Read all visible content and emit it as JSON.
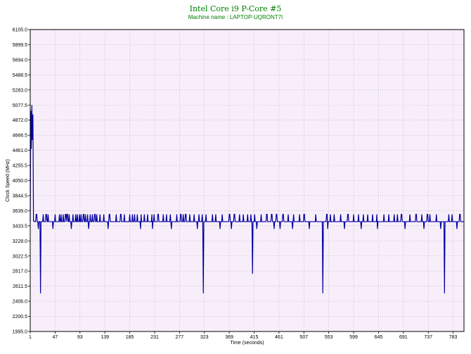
{
  "chart_data": {
    "type": "line",
    "title": "Intel Core i9 P-Core #5",
    "subtitle": "Machine name : LAPTOP-UQRONT7I",
    "xlabel": "Time (seconds)",
    "ylabel": "Clock Speed (MHz)",
    "xlim": [
      1,
      803
    ],
    "ylim": [
      1995.0,
      6105.0
    ],
    "x_ticks": [
      1,
      47,
      93,
      139,
      185,
      231,
      277,
      323,
      369,
      415,
      461,
      507,
      553,
      599,
      645,
      691,
      737,
      783
    ],
    "y_ticks": [
      "1995.0",
      "2200.5",
      "2406.0",
      "2611.5",
      "2817.0",
      "3022.5",
      "3228.0",
      "3433.5",
      "3639.0",
      "3844.5",
      "4050.0",
      "4255.5",
      "4461.0",
      "4666.5",
      "4872.0",
      "5077.5",
      "5283.0",
      "5488.5",
      "5694.0",
      "5899.5",
      "6105.0"
    ],
    "grid": true,
    "baseline": 3490,
    "high_level": 3590,
    "low_level": 3390,
    "initial_spike": [
      [
        1,
        3490
      ],
      [
        2,
        5000
      ],
      [
        3,
        4480
      ],
      [
        4,
        5077
      ],
      [
        5,
        4600
      ],
      [
        6,
        4950
      ],
      [
        7,
        3500
      ],
      [
        8,
        3500
      ]
    ],
    "deep_drops": [
      [
        20,
        2515
      ],
      [
        321,
        2515
      ],
      [
        412,
        2780
      ],
      [
        542,
        2515
      ],
      [
        767,
        2515
      ]
    ],
    "up_spikes": [
      12,
      25,
      30,
      34,
      47,
      55,
      58,
      62,
      66,
      69,
      73,
      80,
      85,
      88,
      92,
      95,
      99,
      103,
      107,
      112,
      116,
      120,
      124,
      130,
      137,
      147,
      160,
      168,
      175,
      185,
      190,
      194,
      199,
      206,
      212,
      218,
      226,
      230,
      237,
      247,
      253,
      260,
      272,
      279,
      284,
      288,
      296,
      304,
      313,
      319,
      326,
      338,
      344,
      356,
      369,
      378,
      388,
      395,
      403,
      409,
      416,
      428,
      438,
      447,
      456,
      468,
      478,
      488,
      499,
      507,
      517,
      529,
      549,
      556,
      563,
      575,
      588,
      599,
      608,
      617,
      625,
      634,
      642,
      655,
      664,
      674,
      680,
      687,
      694,
      703,
      714,
      725,
      735,
      740,
      752,
      775,
      781,
      795
    ],
    "down_spikes": [
      16,
      43,
      77,
      109,
      145,
      205,
      227,
      262,
      310,
      352,
      373,
      420,
      452,
      463,
      486,
      517,
      551,
      582,
      613,
      643,
      694,
      729,
      760,
      790
    ],
    "colors": {
      "line": "#0000a0",
      "plot_background": "#f8eefa",
      "grid": "#aaaaaa",
      "title": "#008000"
    }
  }
}
